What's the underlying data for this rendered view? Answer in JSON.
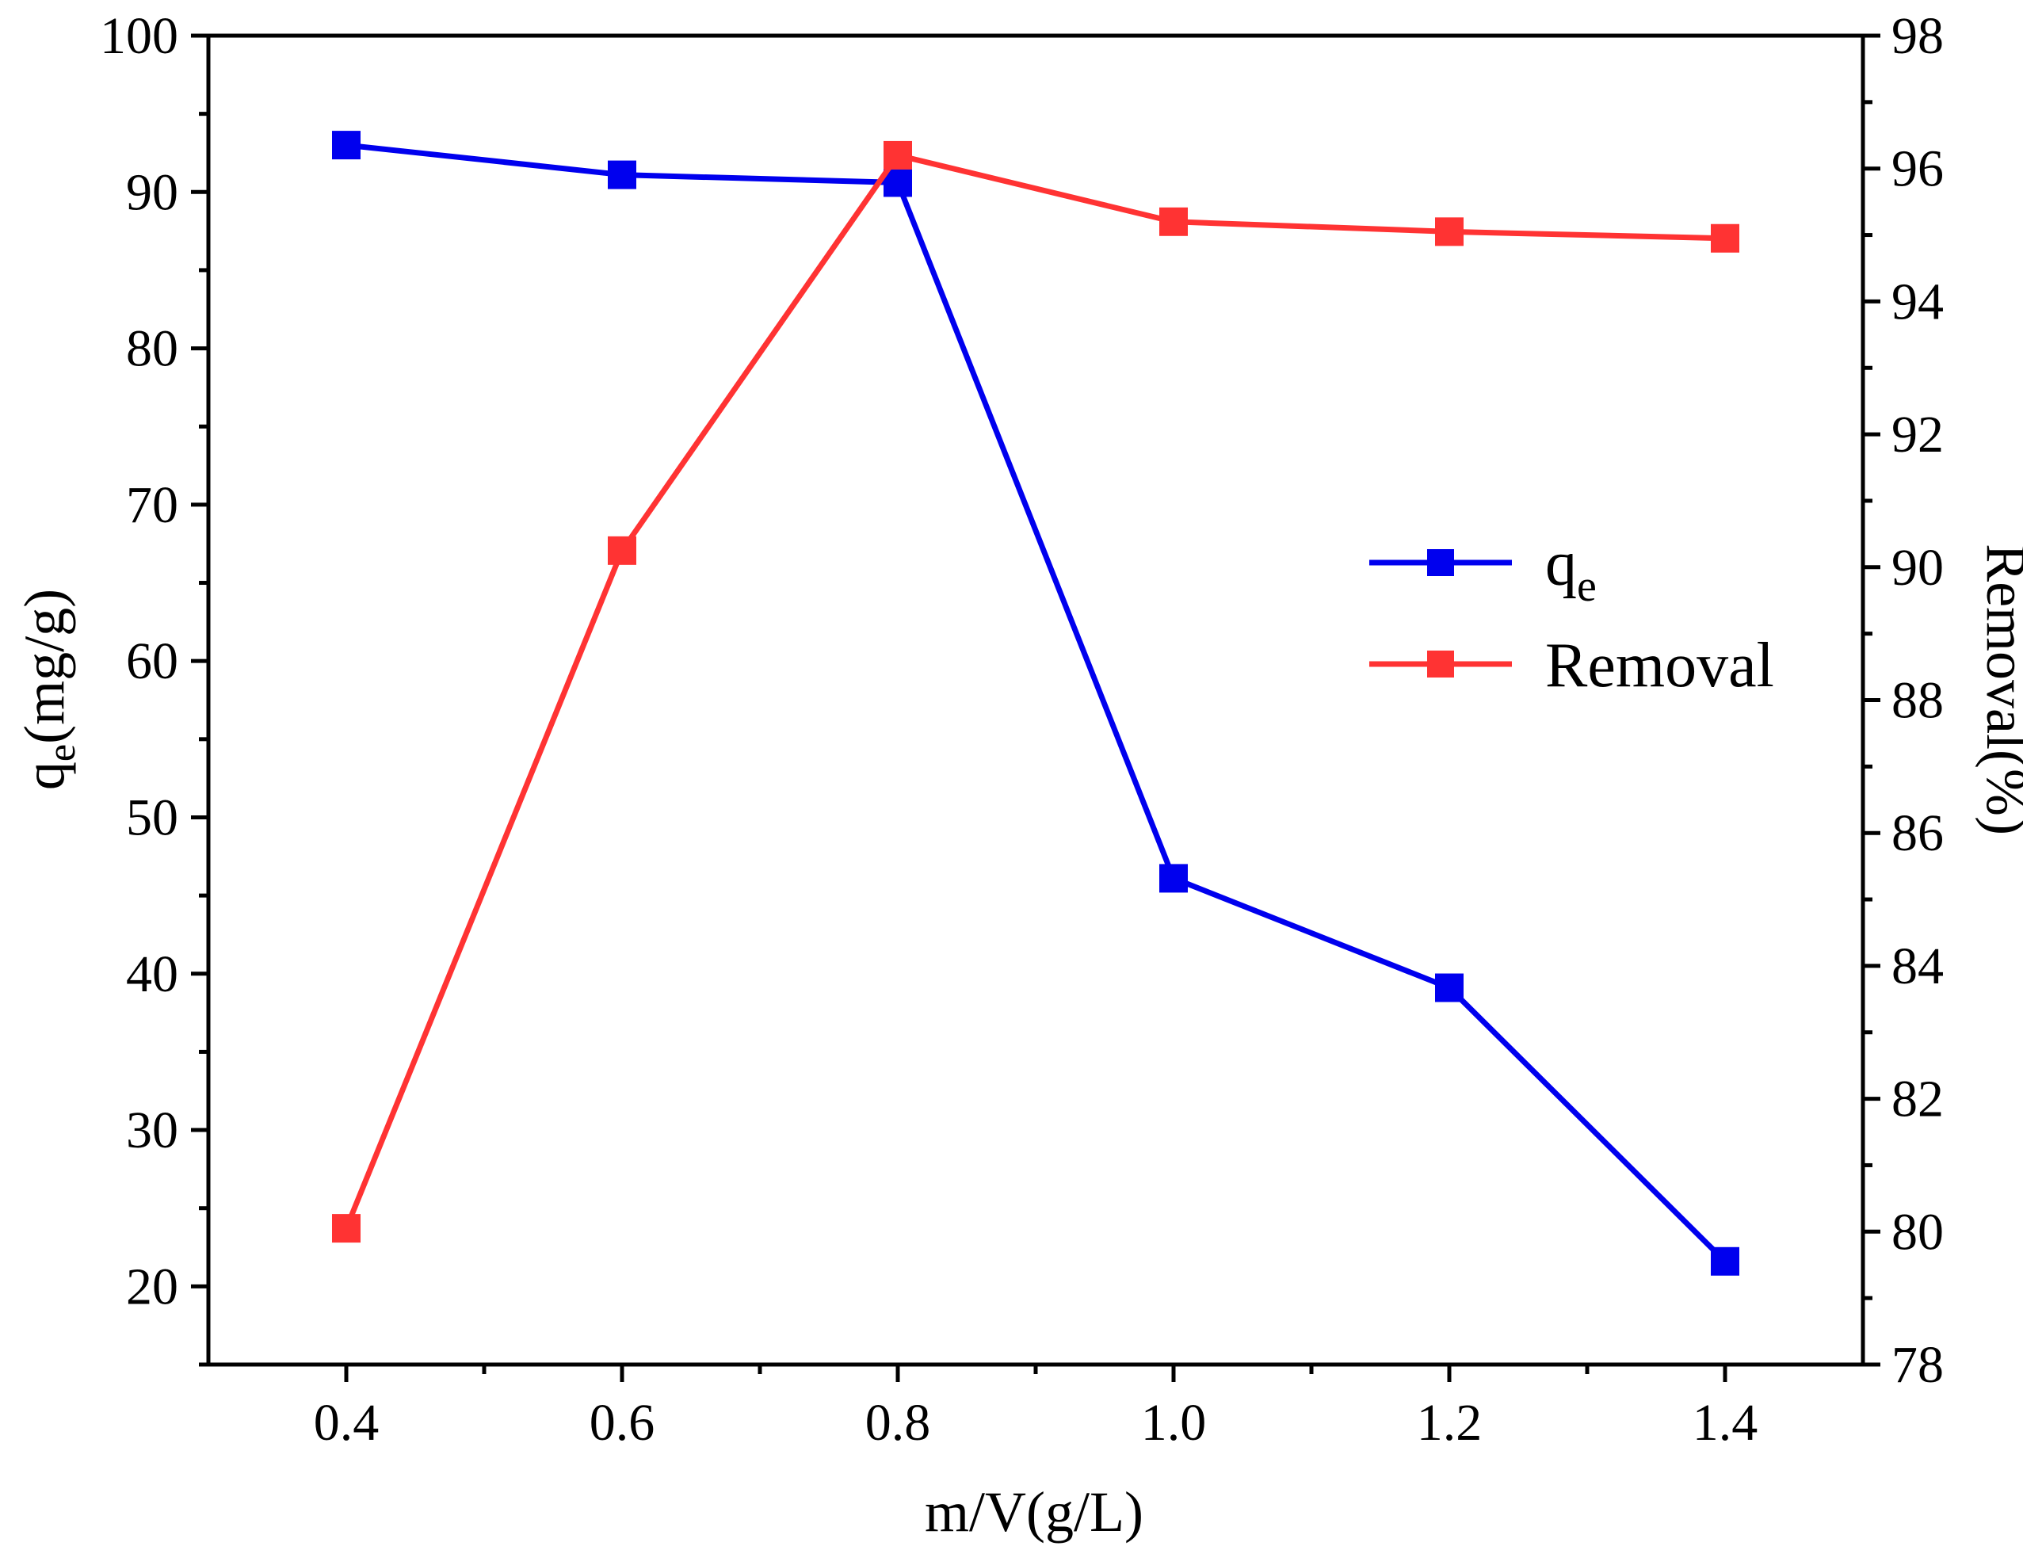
{
  "chart_data": {
    "type": "line",
    "title": "",
    "x": [
      0.4,
      0.6,
      0.8,
      1.0,
      1.2,
      1.4
    ],
    "x_tick_labels": [
      "0.4",
      "0.6",
      "0.8",
      "1.0",
      "1.2",
      "1.4"
    ],
    "xlabel": "m/V(g/L)",
    "xlim": [
      0.3,
      1.5
    ],
    "ylabel_left": {
      "main": "q",
      "sub": "e",
      "tail": "(mg/g)"
    },
    "ylim_left": [
      15,
      100
    ],
    "y_left_ticks": [
      20,
      30,
      40,
      50,
      60,
      70,
      80,
      90,
      100
    ],
    "ylabel_right": "Removal(%)",
    "ylim_right": [
      78,
      98
    ],
    "y_right_ticks": [
      78,
      80,
      82,
      84,
      86,
      88,
      90,
      92,
      94,
      96,
      98
    ],
    "series": [
      {
        "name": "q",
        "name_sub": "e",
        "axis": "left",
        "color": "#0000ee",
        "marker": "square",
        "values": [
          93.0,
          91.1,
          90.6,
          46.1,
          39.1,
          21.6
        ]
      },
      {
        "name": "Removal",
        "axis": "right",
        "color": "#ff3333",
        "marker": "square",
        "values": [
          80.05,
          90.25,
          96.2,
          95.2,
          95.05,
          94.95
        ]
      }
    ],
    "legend_position": "right-middle",
    "grid": false
  }
}
